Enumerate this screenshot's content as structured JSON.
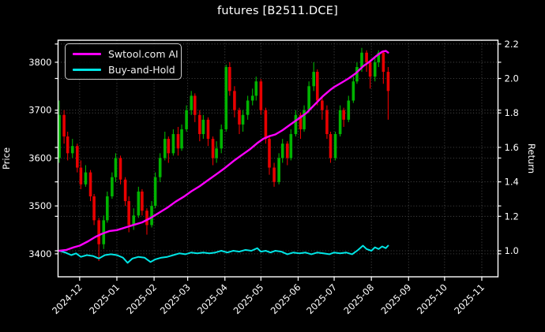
{
  "title": "futures [B2511.DCE]",
  "legend": {
    "items": [
      {
        "label": "Swtool.com AI",
        "color": "#ff00ff"
      },
      {
        "label": "Buy-and-Hold",
        "color": "#00e5e5"
      }
    ]
  },
  "chart_data": {
    "type": "candlestick+line",
    "title": "futures [B2511.DCE]",
    "ylabel_left": "Price",
    "ylabel_right": "Return",
    "legend_position": "upper left",
    "grid": "dotted, both price and return gridlines",
    "grid_color": "#5c5c5c",
    "candle_up_color": "#00b400",
    "candle_down_color": "#e80000",
    "price_ticks": [
      3400,
      3500,
      3600,
      3700,
      3800
    ],
    "return_ticks": [
      1.0,
      1.2,
      1.4,
      1.6,
      1.8,
      2.0,
      2.2
    ],
    "price_ylim": [
      3352,
      3846
    ],
    "return_ylim": [
      0.849,
      2.222
    ],
    "xlim_days": [
      -1,
      365.5
    ],
    "x_ticks": [
      {
        "label": "2024-12",
        "t": 17
      },
      {
        "label": "2025-01",
        "t": 48
      },
      {
        "label": "2025-02",
        "t": 79
      },
      {
        "label": "2025-03",
        "t": 107
      },
      {
        "label": "2025-04",
        "t": 138
      },
      {
        "label": "2025-05",
        "t": 168
      },
      {
        "label": "2025-06",
        "t": 199
      },
      {
        "label": "2025-07",
        "t": 229
      },
      {
        "label": "2025-08",
        "t": 260
      },
      {
        "label": "2025-09",
        "t": 291
      },
      {
        "label": "2025-10",
        "t": 321
      },
      {
        "label": "2025-11",
        "t": 352
      }
    ],
    "candles_format": "[day, open, high, low, close] (day 0 = 2024-11-14)",
    "candles": [
      [
        0,
        3600,
        3720,
        3590,
        3690
      ],
      [
        4,
        3690,
        3700,
        3630,
        3645
      ],
      [
        7,
        3645,
        3655,
        3595,
        3610
      ],
      [
        11,
        3610,
        3640,
        3600,
        3625
      ],
      [
        15,
        3625,
        3630,
        3570,
        3580
      ],
      [
        18,
        3580,
        3595,
        3535,
        3545
      ],
      [
        22,
        3545,
        3585,
        3540,
        3570
      ],
      [
        26,
        3570,
        3575,
        3510,
        3520
      ],
      [
        29,
        3520,
        3525,
        3460,
        3470
      ],
      [
        33,
        3470,
        3475,
        3385,
        3420
      ],
      [
        37,
        3420,
        3480,
        3410,
        3470
      ],
      [
        40,
        3470,
        3530,
        3465,
        3520
      ],
      [
        44,
        3520,
        3570,
        3515,
        3560
      ],
      [
        47,
        3560,
        3610,
        3550,
        3600
      ],
      [
        51,
        3600,
        3605,
        3545,
        3555
      ],
      [
        55,
        3555,
        3560,
        3500,
        3510
      ],
      [
        58,
        3510,
        3520,
        3445,
        3460
      ],
      [
        62,
        3460,
        3495,
        3450,
        3480
      ],
      [
        66,
        3480,
        3540,
        3475,
        3530
      ],
      [
        69,
        3530,
        3535,
        3480,
        3490
      ],
      [
        73,
        3490,
        3495,
        3440,
        3460
      ],
      [
        77,
        3460,
        3510,
        3455,
        3500
      ],
      [
        80,
        3500,
        3570,
        3495,
        3560
      ],
      [
        84,
        3560,
        3610,
        3550,
        3600
      ],
      [
        88,
        3600,
        3655,
        3595,
        3640
      ],
      [
        91,
        3640,
        3645,
        3590,
        3610
      ],
      [
        95,
        3610,
        3660,
        3605,
        3650
      ],
      [
        99,
        3650,
        3665,
        3605,
        3620
      ],
      [
        102,
        3620,
        3670,
        3615,
        3660
      ],
      [
        106,
        3660,
        3710,
        3655,
        3700
      ],
      [
        110,
        3700,
        3740,
        3690,
        3730
      ],
      [
        113,
        3730,
        3735,
        3675,
        3690
      ],
      [
        117,
        3690,
        3700,
        3635,
        3650
      ],
      [
        120,
        3650,
        3690,
        3640,
        3680
      ],
      [
        124,
        3680,
        3685,
        3625,
        3640
      ],
      [
        128,
        3640,
        3645,
        3585,
        3600
      ],
      [
        131,
        3600,
        3635,
        3590,
        3620
      ],
      [
        135,
        3620,
        3670,
        3610,
        3660
      ],
      [
        139,
        3660,
        3795,
        3655,
        3790
      ],
      [
        142,
        3790,
        3800,
        3730,
        3740
      ],
      [
        146,
        3740,
        3750,
        3685,
        3700
      ],
      [
        150,
        3700,
        3705,
        3650,
        3670
      ],
      [
        153,
        3670,
        3700,
        3655,
        3690
      ],
      [
        157,
        3690,
        3730,
        3680,
        3720
      ],
      [
        161,
        3720,
        3745,
        3710,
        3730
      ],
      [
        164,
        3730,
        3770,
        3720,
        3760
      ],
      [
        168,
        3760,
        3765,
        3690,
        3700
      ],
      [
        172,
        3700,
        3705,
        3630,
        3640
      ],
      [
        175,
        3640,
        3645,
        3565,
        3580
      ],
      [
        179,
        3580,
        3590,
        3540,
        3550
      ],
      [
        183,
        3550,
        3610,
        3545,
        3600
      ],
      [
        186,
        3600,
        3640,
        3590,
        3630
      ],
      [
        190,
        3630,
        3635,
        3585,
        3600
      ],
      [
        193,
        3600,
        3660,
        3595,
        3650
      ],
      [
        197,
        3650,
        3700,
        3645,
        3690
      ],
      [
        201,
        3690,
        3695,
        3640,
        3660
      ],
      [
        204,
        3660,
        3710,
        3655,
        3700
      ],
      [
        208,
        3700,
        3760,
        3695,
        3750
      ],
      [
        212,
        3750,
        3800,
        3740,
        3780
      ],
      [
        215,
        3780,
        3785,
        3710,
        3720
      ],
      [
        219,
        3720,
        3725,
        3680,
        3700
      ],
      [
        223,
        3700,
        3710,
        3640,
        3650
      ],
      [
        226,
        3650,
        3655,
        3590,
        3600
      ],
      [
        230,
        3600,
        3655,
        3595,
        3650
      ],
      [
        234,
        3650,
        3710,
        3645,
        3700
      ],
      [
        237,
        3700,
        3705,
        3665,
        3680
      ],
      [
        241,
        3680,
        3730,
        3675,
        3720
      ],
      [
        245,
        3720,
        3770,
        3715,
        3760
      ],
      [
        248,
        3760,
        3800,
        3755,
        3790
      ],
      [
        252,
        3790,
        3830,
        3780,
        3820
      ],
      [
        256,
        3820,
        3825,
        3780,
        3800
      ],
      [
        259,
        3800,
        3805,
        3745,
        3770
      ],
      [
        263,
        3770,
        3810,
        3760,
        3800
      ],
      [
        266,
        3800,
        3825,
        3790,
        3820
      ],
      [
        270,
        3820,
        3825,
        3755,
        3780
      ],
      [
        274,
        3780,
        3790,
        3680,
        3740
      ]
    ],
    "series": [
      {
        "name": "Swtool.com AI",
        "axis": "return",
        "color": "#ff00ff",
        "points": [
          [
            0,
            1.0
          ],
          [
            6,
            1.005
          ],
          [
            12,
            1.02
          ],
          [
            17,
            1.03
          ],
          [
            24,
            1.055
          ],
          [
            30,
            1.08
          ],
          [
            36,
            1.1
          ],
          [
            42,
            1.115
          ],
          [
            48,
            1.12
          ],
          [
            55,
            1.135
          ],
          [
            62,
            1.15
          ],
          [
            69,
            1.165
          ],
          [
            76,
            1.19
          ],
          [
            83,
            1.22
          ],
          [
            90,
            1.25
          ],
          [
            97,
            1.285
          ],
          [
            104,
            1.315
          ],
          [
            110,
            1.345
          ],
          [
            117,
            1.375
          ],
          [
            124,
            1.41
          ],
          [
            131,
            1.445
          ],
          [
            138,
            1.48
          ],
          [
            145,
            1.52
          ],
          [
            152,
            1.555
          ],
          [
            159,
            1.59
          ],
          [
            165,
            1.625
          ],
          [
            170,
            1.65
          ],
          [
            175,
            1.665
          ],
          [
            180,
            1.675
          ],
          [
            186,
            1.7
          ],
          [
            192,
            1.73
          ],
          [
            199,
            1.765
          ],
          [
            206,
            1.8
          ],
          [
            213,
            1.85
          ],
          [
            220,
            1.9
          ],
          [
            226,
            1.935
          ],
          [
            229,
            1.95
          ],
          [
            235,
            1.975
          ],
          [
            241,
            2.0
          ],
          [
            247,
            2.03
          ],
          [
            253,
            2.07
          ],
          [
            259,
            2.1
          ],
          [
            264,
            2.13
          ],
          [
            269,
            2.155
          ],
          [
            272,
            2.16
          ],
          [
            274,
            2.15
          ]
        ]
      },
      {
        "name": "Buy-and-Hold",
        "axis": "return",
        "color": "#00e5e5",
        "points": [
          [
            0,
            1.0
          ],
          [
            5,
            0.99
          ],
          [
            10,
            0.975
          ],
          [
            14,
            0.985
          ],
          [
            18,
            0.965
          ],
          [
            23,
            0.975
          ],
          [
            28,
            0.97
          ],
          [
            33,
            0.955
          ],
          [
            38,
            0.975
          ],
          [
            43,
            0.98
          ],
          [
            48,
            0.975
          ],
          [
            53,
            0.96
          ],
          [
            57,
            0.93
          ],
          [
            61,
            0.955
          ],
          [
            66,
            0.965
          ],
          [
            71,
            0.96
          ],
          [
            76,
            0.935
          ],
          [
            80,
            0.95
          ],
          [
            85,
            0.96
          ],
          [
            90,
            0.965
          ],
          [
            95,
            0.975
          ],
          [
            100,
            0.985
          ],
          [
            105,
            0.98
          ],
          [
            110,
            0.99
          ],
          [
            115,
            0.985
          ],
          [
            120,
            0.99
          ],
          [
            125,
            0.985
          ],
          [
            130,
            0.99
          ],
          [
            135,
            1.0
          ],
          [
            140,
            0.99
          ],
          [
            145,
            1.0
          ],
          [
            150,
            0.995
          ],
          [
            155,
            1.005
          ],
          [
            160,
            1.0
          ],
          [
            165,
            1.015
          ],
          [
            168,
            0.995
          ],
          [
            172,
            1.0
          ],
          [
            176,
            0.99
          ],
          [
            180,
            1.0
          ],
          [
            185,
            0.995
          ],
          [
            190,
            0.98
          ],
          [
            195,
            0.99
          ],
          [
            200,
            0.985
          ],
          [
            205,
            0.99
          ],
          [
            210,
            0.98
          ],
          [
            215,
            0.99
          ],
          [
            220,
            0.985
          ],
          [
            225,
            0.98
          ],
          [
            229,
            0.99
          ],
          [
            234,
            0.985
          ],
          [
            239,
            0.99
          ],
          [
            244,
            0.98
          ],
          [
            249,
            1.005
          ],
          [
            253,
            1.03
          ],
          [
            256,
            1.01
          ],
          [
            260,
            1.0
          ],
          [
            263,
            1.02
          ],
          [
            266,
            1.01
          ],
          [
            269,
            1.025
          ],
          [
            272,
            1.015
          ],
          [
            274,
            1.03
          ]
        ]
      }
    ]
  }
}
